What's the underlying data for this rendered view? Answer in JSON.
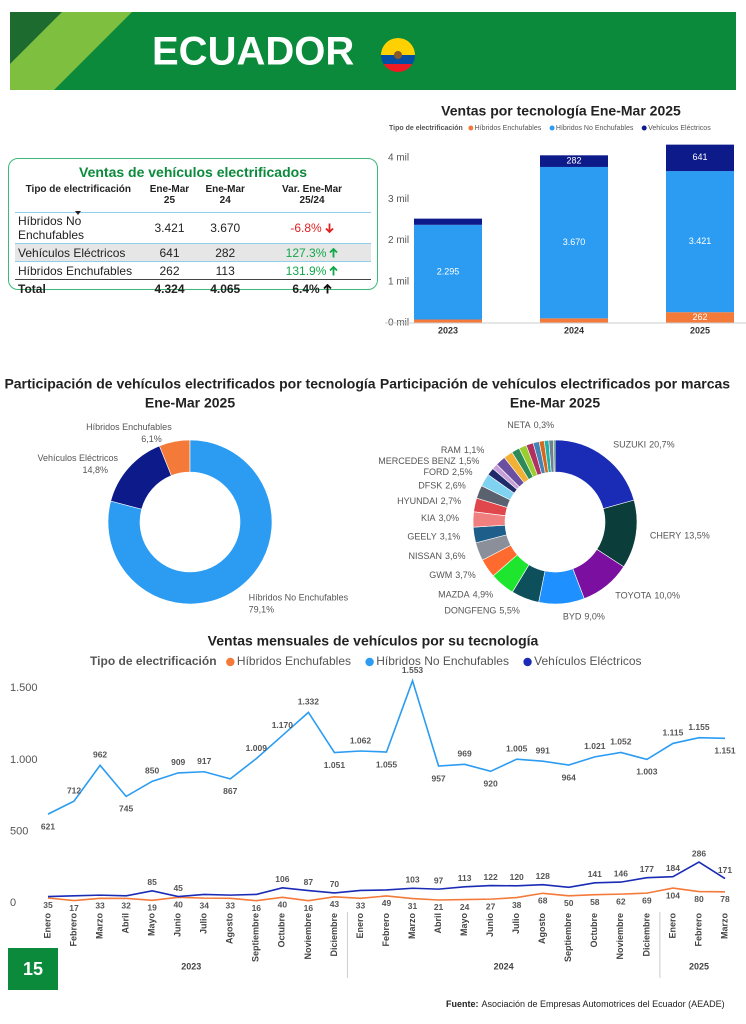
{
  "header": {
    "title": "ECUADOR"
  },
  "table": {
    "title": "Ventas de vehículos electrificados",
    "columns": [
      "Tipo de electrificación",
      "Ene-Mar 25",
      "Ene-Mar 24",
      "Var. Ene-Mar 25/24"
    ],
    "rows": [
      [
        "Híbridos No Enchufables",
        "3.421",
        "3.670",
        "-6.8%"
      ],
      [
        "Vehículos Eléctricos",
        "641",
        "282",
        "127.3%"
      ],
      [
        "Híbridos Enchufables",
        "262",
        "113",
        "131.9%"
      ]
    ],
    "total": [
      "Total",
      "4.324",
      "4.065",
      "6.4%"
    ]
  },
  "chart_data": [
    {
      "type": "bar",
      "stacked": true,
      "title": "Ventas por tecnología Ene-Mar 2025",
      "legend_title": "Tipo de electrificación",
      "categories": [
        "2023",
        "2024",
        "2025"
      ],
      "series": [
        {
          "name": "Híbridos Enchufables",
          "color": "#f47a3a",
          "values": [
            85,
            113,
            262
          ],
          "value_labels": [
            null,
            null,
            "262"
          ]
        },
        {
          "name": "Híbridos No Enchufables",
          "color": "#2b9cf2",
          "values": [
            2295,
            3670,
            3421
          ],
          "value_labels": [
            "2.295",
            "3.670",
            "3.421"
          ]
        },
        {
          "name": "Vehículos Eléctricos",
          "color": "#0c1a8a",
          "values": [
            150,
            282,
            641
          ],
          "value_labels": [
            null,
            "282",
            "641"
          ]
        }
      ],
      "ylim": [
        0,
        4400
      ],
      "yticks": [
        {
          "value": 0,
          "label": "0 mil"
        },
        {
          "value": 1000,
          "label": "1 mil"
        },
        {
          "value": 2000,
          "label": "2 mil"
        },
        {
          "value": 3000,
          "label": "3 mil"
        },
        {
          "value": 4000,
          "label": "4 mil"
        }
      ]
    },
    {
      "type": "pie",
      "donut": true,
      "direction": "counterclockwise",
      "title": "Participación de vehículos electrificados por tecnología",
      "subtitle": "Ene-Mar 2025",
      "categories": [
        "Híbridos Enchufables",
        "Vehículos Eléctricos",
        "Híbridos No Enchufables"
      ],
      "values": [
        6.1,
        14.8,
        79.1
      ],
      "value_labels": [
        "6,1%",
        "14,8%",
        "79,1%"
      ],
      "colors": [
        "#f47a3a",
        "#0c1a8a",
        "#2b9cf2"
      ]
    },
    {
      "type": "pie",
      "donut": true,
      "direction": "clockwise",
      "title": "Participación de vehículos electrificados por marcas",
      "subtitle": "Ene-Mar 2025",
      "categories": [
        "SUZUKI",
        "CHERY",
        "TOYOTA",
        "BYD",
        "DONGFENG",
        "MAZDA",
        "GWM",
        "NISSAN",
        "GEELY",
        "KIA",
        "HYUNDAI",
        "DFSK",
        "FORD",
        "MERCEDES BENZ",
        "RAM",
        null,
        null,
        null,
        null,
        null,
        null,
        null,
        null,
        null,
        "NETA"
      ],
      "values": [
        20.7,
        13.5,
        10.0,
        9.0,
        5.5,
        4.9,
        3.7,
        3.6,
        3.1,
        3.0,
        2.7,
        2.6,
        2.5,
        1.5,
        1.1,
        2.0,
        1.8,
        1.6,
        1.5,
        1.4,
        1.2,
        1.0,
        0.9,
        0.9,
        0.3
      ],
      "value_labels": [
        "20,7%",
        "13,5%",
        "10,0%",
        "9,0%",
        "5,5%",
        "4,9%",
        "3,7%",
        "3,6%",
        "3,1%",
        "3,0%",
        "2,7%",
        "2,6%",
        "2,5%",
        "1,5%",
        "1,1%",
        null,
        null,
        null,
        null,
        null,
        null,
        null,
        null,
        null,
        "0,3%"
      ],
      "colors": [
        "#1a2bb5",
        "#0b3d3a",
        "#7a0fa0",
        "#1e90ff",
        "#0d4f5a",
        "#1ee62e",
        "#ff6a2e",
        "#8a8f99",
        "#1d5f8a",
        "#f08080",
        "#e0474c",
        "#5a6270",
        "#7fd3f0",
        "#1f2a6b",
        "#c8a0d8",
        "#6b4fa0",
        "#f2b134",
        "#2e8b57",
        "#9acd32",
        "#b03060",
        "#4682b4",
        "#d2691e",
        "#20b2aa",
        "#708090",
        "#3a9a3a"
      ]
    },
    {
      "type": "line",
      "title": "Ventas mensuales de vehículos por su tecnología",
      "legend_title": "Tipo de electrificación",
      "groups": [
        {
          "name": "2023",
          "categories": [
            "Enero",
            "Febrero",
            "Marzo",
            "Abril",
            "Mayo",
            "Junio",
            "Julio",
            "Agosto",
            "Septiembre",
            "Octubre",
            "Noviembre",
            "Diciembre"
          ]
        },
        {
          "name": "2024",
          "categories": [
            "Enero",
            "Febrero",
            "Marzo",
            "Abril",
            "Mayo",
            "Junio",
            "Julio",
            "Agosto",
            "Septiembre",
            "Octubre",
            "Noviembre",
            "Diciembre"
          ]
        },
        {
          "name": "2025",
          "categories": [
            "Enero",
            "Febrero",
            "Marzo"
          ]
        }
      ],
      "series": [
        {
          "name": "Híbridos Enchufables",
          "color": "#f47a3a",
          "values": [
            35,
            17,
            33,
            32,
            19,
            40,
            34,
            33,
            16,
            40,
            16,
            43,
            33,
            49,
            31,
            21,
            24,
            27,
            38,
            68,
            50,
            58,
            62,
            69,
            104,
            80,
            78
          ],
          "value_labels": [
            "35",
            "17",
            "33",
            "32",
            "19",
            "40",
            "34",
            "33",
            "16",
            "40",
            "16",
            "43",
            "33",
            "49",
            "31",
            "21",
            "24",
            "27",
            "38",
            "68",
            "50",
            "58",
            "62",
            "69",
            "104",
            "80",
            "78"
          ]
        },
        {
          "name": "Híbridos No Enchufables",
          "color": "#2b9cf2",
          "values": [
            621,
            712,
            962,
            745,
            850,
            909,
            917,
            867,
            1009,
            1170,
            1332,
            1051,
            1062,
            1055,
            1553,
            957,
            969,
            920,
            1005,
            991,
            964,
            1021,
            1052,
            1003,
            1115,
            1155,
            1151
          ],
          "value_labels": [
            "621",
            "712",
            "962",
            "745",
            "850",
            "909",
            "917",
            "867",
            "1.009",
            "1.170",
            "1.332",
            "1.051",
            "1.062",
            "1.055",
            "1.553",
            "957",
            "969",
            "920",
            "1.005",
            "991",
            "964",
            "1.021",
            "1.052",
            "1.003",
            "1.115",
            "1.155",
            "1.151"
          ]
        },
        {
          "name": "Vehículos Eléctricos",
          "color": "#1a2bb5",
          "values": [
            45,
            50,
            55,
            50,
            85,
            45,
            60,
            55,
            60,
            106,
            87,
            70,
            88,
            91,
            103,
            97,
            113,
            122,
            120,
            128,
            110,
            141,
            146,
            177,
            184,
            286,
            171
          ],
          "value_labels": [
            null,
            null,
            null,
            null,
            "85",
            "45",
            null,
            null,
            null,
            "106",
            "87",
            "70",
            null,
            null,
            "103",
            "97",
            "113",
            "122",
            "120",
            "128",
            null,
            "141",
            "146",
            "177",
            "184",
            "286",
            "171"
          ]
        }
      ],
      "ylim": [
        0,
        1600
      ],
      "yticks": [
        0,
        500,
        {
          "value": 1000,
          "label": "1.000"
        },
        {
          "value": 1500,
          "label": "1.500"
        }
      ]
    }
  ],
  "footer": {
    "page": "15",
    "source_label": "Fuente:",
    "source": "Asociación de Empresas Automotrices del Ecuador (AEADE)"
  }
}
